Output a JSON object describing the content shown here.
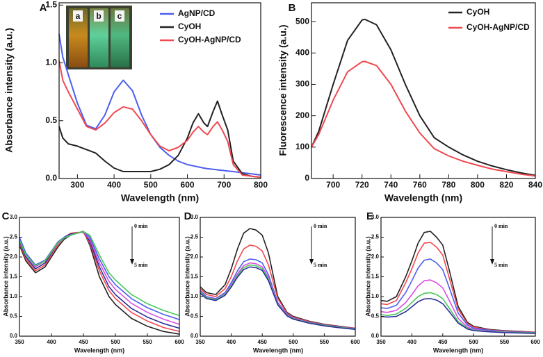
{
  "chart_data": [
    {
      "type": "line",
      "label": "A",
      "xlabel": "Wavelength (nm)",
      "ylabel": "Absorbance intensity (a.u.)",
      "xlim": [
        250,
        800
      ],
      "ylim": [
        0,
        1.52
      ],
      "xticks": [
        300,
        400,
        500,
        600,
        700,
        800
      ],
      "yticks": [
        {
          "value": 0,
          "label": "0.0"
        },
        0.5,
        {
          "value": 1,
          "label": "1.0"
        },
        1.5
      ],
      "legend": "upper right",
      "inset_labels": [
        "a",
        "b",
        "c"
      ],
      "x": [
        250,
        260,
        275,
        300,
        325,
        350,
        375,
        400,
        425,
        450,
        475,
        500,
        525,
        550,
        575,
        600,
        615,
        630,
        645,
        655,
        670,
        682,
        695,
        710,
        725,
        750,
        775,
        800
      ],
      "series": [
        {
          "name": "AgNP/CD",
          "color": "#4b5ef0",
          "values": [
            1.25,
            1.05,
            0.9,
            0.65,
            0.46,
            0.43,
            0.55,
            0.75,
            0.85,
            0.76,
            0.55,
            0.38,
            0.27,
            0.2,
            0.15,
            0.12,
            0.11,
            0.1,
            0.09,
            0.085,
            0.08,
            0.075,
            0.07,
            0.065,
            0.06,
            0.05,
            0.04,
            0.03
          ]
        },
        {
          "name": "CyOH",
          "color": "#222222",
          "values": [
            0.45,
            0.35,
            0.3,
            0.28,
            0.25,
            0.22,
            0.15,
            0.09,
            0.06,
            0.06,
            0.06,
            0.06,
            0.08,
            0.12,
            0.2,
            0.35,
            0.48,
            0.56,
            0.48,
            0.45,
            0.58,
            0.67,
            0.55,
            0.42,
            0.15,
            0.04,
            0.02,
            0.01
          ]
        },
        {
          "name": "CyOH-AgNP/CD",
          "color": "#f0484f",
          "values": [
            1.02,
            0.85,
            0.75,
            0.6,
            0.45,
            0.42,
            0.48,
            0.57,
            0.62,
            0.6,
            0.5,
            0.38,
            0.28,
            0.24,
            0.27,
            0.33,
            0.4,
            0.45,
            0.4,
            0.38,
            0.45,
            0.49,
            0.42,
            0.32,
            0.12,
            0.03,
            0.02,
            0.01
          ]
        }
      ]
    },
    {
      "type": "line",
      "label": "B",
      "xlabel": "Wavelength (nm)",
      "ylabel": "Fluorescence intensity (a.u.)",
      "xlim": [
        685,
        840
      ],
      "ylim": [
        0,
        560
      ],
      "xticks": [
        700,
        720,
        740,
        760,
        780,
        800,
        820,
        840
      ],
      "yticks": [
        0,
        100,
        200,
        300,
        400,
        500
      ],
      "legend": "upper right",
      "x": [
        685,
        690,
        700,
        710,
        720,
        722,
        730,
        740,
        750,
        760,
        770,
        780,
        790,
        800,
        810,
        820,
        830,
        840
      ],
      "series": [
        {
          "name": "CyOH",
          "color": "#222222",
          "values": [
            100,
            150,
            300,
            440,
            505,
            507,
            490,
            410,
            300,
            200,
            130,
            100,
            75,
            55,
            40,
            28,
            18,
            10
          ]
        },
        {
          "name": "CyOH-AgNP/CD",
          "color": "#f0484f",
          "values": [
            100,
            140,
            250,
            340,
            372,
            373,
            360,
            300,
            215,
            145,
            95,
            72,
            55,
            42,
            30,
            22,
            14,
            8
          ]
        }
      ]
    },
    {
      "type": "line",
      "label": "C",
      "xlabel": "Wavelength (nm)",
      "ylabel": "Absorbance intensity (a.u.)",
      "xlim": [
        350,
        600
      ],
      "ylim": [
        0,
        3
      ],
      "xticks": [
        350,
        400,
        450,
        500,
        550,
        600
      ],
      "yticks": [
        {
          "value": 0,
          "label": "0.0"
        },
        0.5,
        {
          "value": 1,
          "label": "1.0"
        },
        1.5,
        {
          "value": 2,
          "label": "2.0"
        },
        2.5,
        {
          "value": 3,
          "label": "3.0"
        }
      ],
      "annotations": [
        "0 min",
        "5 min"
      ],
      "x": [
        350,
        360,
        375,
        390,
        400,
        410,
        420,
        430,
        440,
        450,
        460,
        475,
        490,
        500,
        525,
        550,
        575,
        600
      ],
      "series": [
        {
          "color": "#222222",
          "values": [
            2.3,
            1.9,
            1.6,
            1.75,
            2.0,
            2.25,
            2.45,
            2.55,
            2.6,
            2.65,
            2.3,
            1.5,
            1.0,
            0.8,
            0.45,
            0.25,
            0.12,
            0.05
          ]
        },
        {
          "color": "#f0484f",
          "values": [
            2.35,
            1.95,
            1.65,
            1.8,
            2.05,
            2.3,
            2.5,
            2.6,
            2.62,
            2.62,
            2.35,
            1.65,
            1.15,
            0.95,
            0.6,
            0.38,
            0.22,
            0.12
          ]
        },
        {
          "color": "#2a2f9a",
          "values": [
            2.4,
            2.0,
            1.7,
            1.85,
            2.1,
            2.35,
            2.5,
            2.58,
            2.6,
            2.64,
            2.4,
            1.75,
            1.25,
            1.05,
            0.7,
            0.48,
            0.32,
            0.2
          ]
        },
        {
          "color": "#d94fe0",
          "values": [
            2.45,
            2.05,
            1.75,
            1.9,
            2.12,
            2.35,
            2.48,
            2.55,
            2.6,
            2.63,
            2.45,
            1.85,
            1.38,
            1.18,
            0.83,
            0.6,
            0.43,
            0.3
          ]
        },
        {
          "color": "#4b5ef0",
          "values": [
            2.5,
            2.1,
            1.8,
            1.92,
            2.15,
            2.38,
            2.5,
            2.56,
            2.6,
            2.64,
            2.5,
            1.95,
            1.5,
            1.3,
            0.95,
            0.72,
            0.55,
            0.42
          ]
        },
        {
          "color": "#49c95a",
          "values": [
            2.42,
            2.05,
            1.78,
            1.9,
            2.13,
            2.36,
            2.48,
            2.55,
            2.6,
            2.64,
            2.55,
            2.05,
            1.6,
            1.42,
            1.05,
            0.82,
            0.65,
            0.52
          ]
        }
      ]
    },
    {
      "type": "line",
      "label": "D",
      "xlabel": "Wavelength (nm)",
      "ylabel": "Absorbance intensity (a.u.)",
      "xlim": [
        350,
        600
      ],
      "ylim": [
        0,
        3
      ],
      "xticks": [
        350,
        400,
        450,
        500,
        550,
        600
      ],
      "yticks": [
        {
          "value": 0,
          "label": "0.0"
        },
        0.5,
        {
          "value": 1,
          "label": "1.0"
        },
        1.5,
        {
          "value": 2,
          "label": "2.0"
        },
        2.5,
        {
          "value": 3,
          "label": "3.0"
        }
      ],
      "annotations": [
        "0 min",
        "5 min"
      ],
      "x": [
        350,
        360,
        375,
        390,
        400,
        410,
        420,
        430,
        440,
        450,
        460,
        475,
        490,
        500,
        525,
        550,
        575,
        600
      ],
      "series": [
        {
          "color": "#222222",
          "values": [
            1.25,
            1.1,
            1.05,
            1.3,
            1.7,
            2.2,
            2.6,
            2.72,
            2.68,
            2.55,
            2.1,
            1.0,
            0.6,
            0.5,
            0.38,
            0.3,
            0.25,
            0.2
          ]
        },
        {
          "color": "#f0484f",
          "values": [
            1.2,
            1.05,
            1.0,
            1.2,
            1.5,
            1.9,
            2.2,
            2.3,
            2.27,
            2.15,
            1.8,
            0.95,
            0.58,
            0.48,
            0.37,
            0.29,
            0.24,
            0.2
          ]
        },
        {
          "color": "#4b5ef0",
          "values": [
            1.15,
            1.0,
            0.95,
            1.1,
            1.35,
            1.65,
            1.88,
            1.95,
            1.93,
            1.85,
            1.55,
            0.85,
            0.55,
            0.46,
            0.35,
            0.28,
            0.23,
            0.19
          ]
        },
        {
          "color": "#d94fe0",
          "values": [
            1.1,
            0.98,
            0.93,
            1.07,
            1.3,
            1.57,
            1.78,
            1.85,
            1.83,
            1.75,
            1.48,
            0.82,
            0.53,
            0.45,
            0.34,
            0.27,
            0.22,
            0.18
          ]
        },
        {
          "color": "#49c95a",
          "values": [
            1.1,
            0.97,
            0.92,
            1.05,
            1.27,
            1.53,
            1.73,
            1.8,
            1.78,
            1.7,
            1.44,
            0.8,
            0.52,
            0.44,
            0.34,
            0.27,
            0.22,
            0.18
          ]
        },
        {
          "color": "#2a2f9a",
          "values": [
            1.08,
            0.95,
            0.9,
            1.03,
            1.24,
            1.49,
            1.68,
            1.75,
            1.73,
            1.66,
            1.4,
            0.79,
            0.51,
            0.43,
            0.33,
            0.26,
            0.21,
            0.17
          ]
        }
      ]
    },
    {
      "type": "line",
      "label": "E",
      "xlabel": "Wavelength (nm)",
      "ylabel": "Absorbance intensity (a.u.)",
      "xlim": [
        350,
        600
      ],
      "ylim": [
        0,
        3
      ],
      "xticks": [
        350,
        400,
        450,
        500,
        550,
        600
      ],
      "yticks": [
        {
          "value": 0,
          "label": "0.0"
        },
        0.5,
        {
          "value": 1,
          "label": "1.0"
        },
        1.5,
        {
          "value": 2,
          "label": "2.0"
        },
        2.5,
        {
          "value": 3,
          "label": "3.0"
        }
      ],
      "annotations": [
        "0 min",
        "5 min"
      ],
      "x": [
        350,
        360,
        375,
        390,
        400,
        410,
        420,
        430,
        440,
        450,
        460,
        475,
        490,
        500,
        525,
        550,
        575,
        600
      ],
      "series": [
        {
          "color": "#222222",
          "values": [
            0.9,
            0.88,
            1.0,
            1.5,
            1.9,
            2.35,
            2.62,
            2.65,
            2.5,
            2.3,
            1.7,
            0.75,
            0.35,
            0.25,
            0.17,
            0.14,
            0.12,
            0.1
          ]
        },
        {
          "color": "#f0484f",
          "values": [
            0.82,
            0.8,
            0.9,
            1.35,
            1.7,
            2.1,
            2.35,
            2.37,
            2.25,
            2.05,
            1.5,
            0.68,
            0.32,
            0.23,
            0.16,
            0.13,
            0.11,
            0.1
          ]
        },
        {
          "color": "#4b5ef0",
          "values": [
            0.72,
            0.7,
            0.78,
            1.1,
            1.4,
            1.72,
            1.92,
            1.95,
            1.85,
            1.68,
            1.25,
            0.58,
            0.28,
            0.2,
            0.15,
            0.12,
            0.1,
            0.09
          ]
        },
        {
          "color": "#d94fe0",
          "values": [
            0.62,
            0.6,
            0.65,
            0.85,
            1.05,
            1.27,
            1.4,
            1.42,
            1.35,
            1.22,
            0.92,
            0.45,
            0.23,
            0.17,
            0.13,
            0.11,
            0.09,
            0.08
          ]
        },
        {
          "color": "#49c95a",
          "values": [
            0.55,
            0.52,
            0.56,
            0.7,
            0.85,
            1.0,
            1.08,
            1.1,
            1.05,
            0.95,
            0.72,
            0.37,
            0.2,
            0.15,
            0.12,
            0.1,
            0.09,
            0.08
          ]
        },
        {
          "color": "#2a2f9a",
          "values": [
            0.5,
            0.48,
            0.5,
            0.62,
            0.74,
            0.87,
            0.94,
            0.95,
            0.91,
            0.82,
            0.63,
            0.33,
            0.18,
            0.14,
            0.11,
            0.09,
            0.08,
            0.07
          ]
        }
      ]
    }
  ]
}
